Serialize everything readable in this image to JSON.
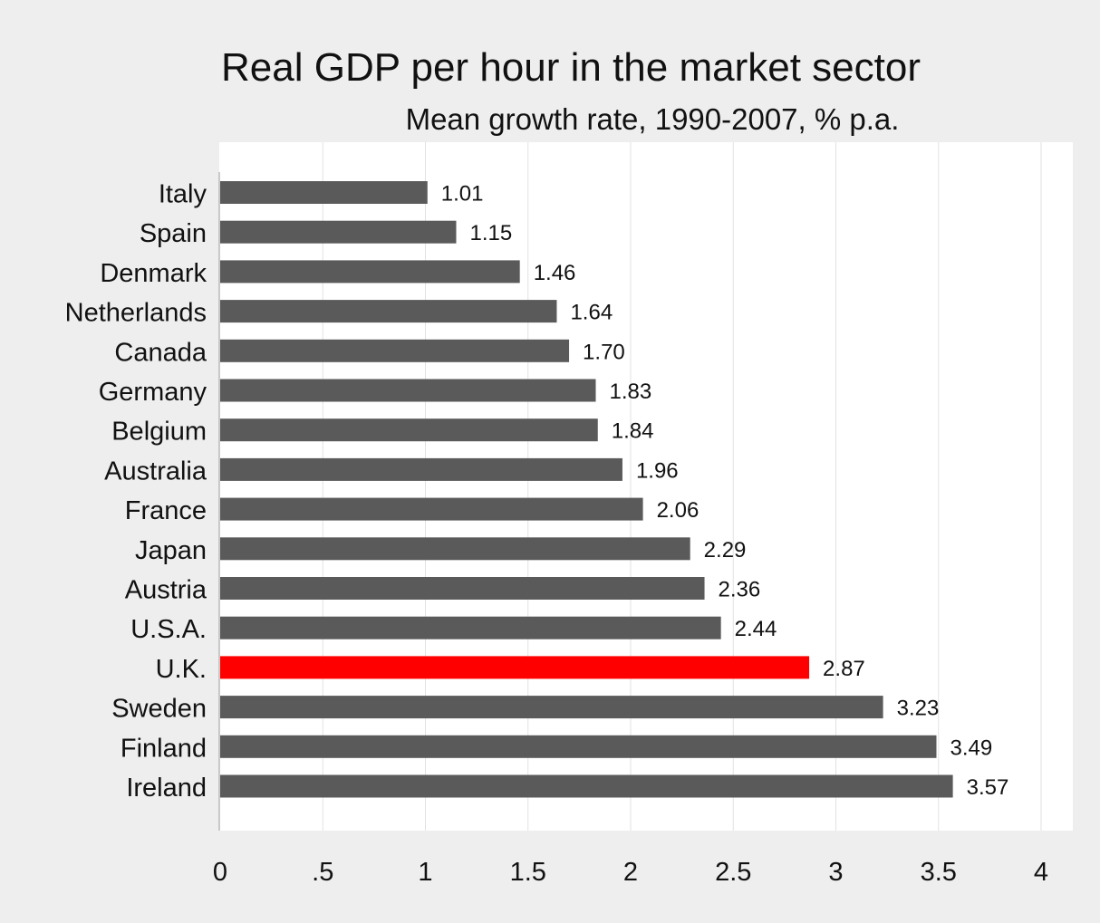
{
  "chart_data": {
    "type": "bar",
    "orientation": "horizontal",
    "title": "Real GDP per hour in the market sector",
    "subtitle": "Mean growth rate, 1990-2007, % p.a.",
    "xlabel": "",
    "ylabel": "",
    "xlim": [
      0,
      4.15
    ],
    "xticks": [
      0,
      0.5,
      1,
      1.5,
      2,
      2.5,
      3,
      3.5,
      4
    ],
    "xtick_labels": [
      "0",
      ".5",
      "1",
      "1.5",
      "2",
      "2.5",
      "3",
      "3.5",
      "4"
    ],
    "grid": true,
    "categories": [
      "Italy",
      "Spain",
      "Denmark",
      "Netherlands",
      "Canada",
      "Germany",
      "Belgium",
      "Australia",
      "France",
      "Japan",
      "Austria",
      "U.S.A.",
      "U.K.",
      "Sweden",
      "Finland",
      "Ireland"
    ],
    "values": [
      1.01,
      1.15,
      1.46,
      1.64,
      1.7,
      1.83,
      1.84,
      1.96,
      2.06,
      2.29,
      2.36,
      2.44,
      2.87,
      3.23,
      3.49,
      3.57
    ],
    "value_labels": [
      "1.01",
      "1.15",
      "1.46",
      "1.64",
      "1.70",
      "1.83",
      "1.84",
      "1.96",
      "2.06",
      "2.29",
      "2.36",
      "2.44",
      "2.87",
      "3.23",
      "3.49",
      "3.57"
    ],
    "highlight_category": "U.K.",
    "colors": {
      "bar": "#5a5a5a",
      "highlight": "#ff0000",
      "background": "#eeeeee",
      "plot_area": "#ffffff",
      "grid": "#e2e2e2"
    }
  }
}
